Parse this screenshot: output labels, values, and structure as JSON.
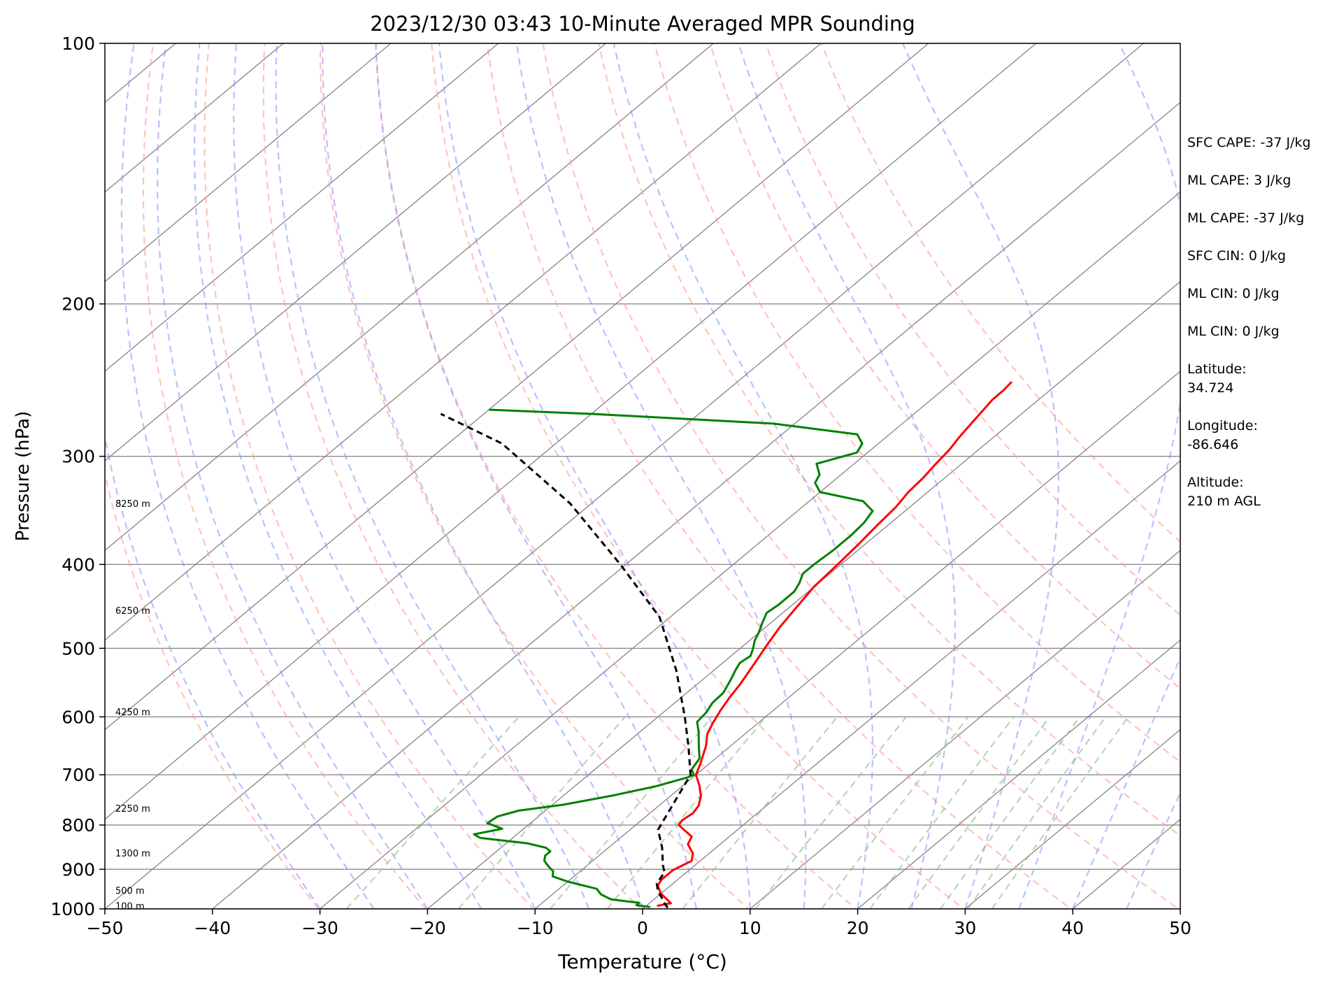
{
  "chart_data": {
    "type": "line",
    "title": "2023/12/30 03:43 10-Minute Averaged MPR Sounding",
    "xlabel": "Temperature (°C)",
    "ylabel": "Pressure (hPa)",
    "xlim": [
      -50,
      50
    ],
    "ylim": [
      1000,
      100
    ],
    "y_scale": "log",
    "skew_t": true,
    "grid": true,
    "x_ticks": [
      -50,
      -40,
      -30,
      -20,
      -10,
      0,
      10,
      20,
      30,
      40,
      50
    ],
    "x_tick_labels": [
      "−50",
      "−40",
      "−30",
      "−20",
      "−10",
      "0",
      "10",
      "20",
      "30",
      "40",
      "50"
    ],
    "y_ticks": [
      100,
      200,
      300,
      400,
      500,
      600,
      700,
      800,
      900,
      1000
    ],
    "y_tick_labels": [
      "100",
      "200",
      "300",
      "400",
      "500",
      "600",
      "700",
      "800",
      "900",
      "1000"
    ],
    "series": [
      {
        "color": "#ff0000",
        "style": "solid",
        "points": [
          [
            1.0,
            992
          ],
          [
            2.0,
            985
          ],
          [
            0.0,
            960
          ],
          [
            -1.2,
            940
          ],
          [
            -1.5,
            925
          ],
          [
            -1.5,
            902
          ],
          [
            -0.8,
            880
          ],
          [
            -1.5,
            863
          ],
          [
            -3.0,
            842
          ],
          [
            -3.5,
            825
          ],
          [
            -5.0,
            810
          ],
          [
            -6.0,
            800
          ],
          [
            -6.2,
            790
          ],
          [
            -6.0,
            775
          ],
          [
            -6.3,
            760
          ],
          [
            -7.2,
            740
          ],
          [
            -8.5,
            720
          ],
          [
            -10.0,
            700
          ],
          [
            -10.8,
            680
          ],
          [
            -11.5,
            665
          ],
          [
            -12.3,
            648
          ],
          [
            -13.5,
            628
          ],
          [
            -14.2,
            610
          ],
          [
            -14.9,
            590
          ],
          [
            -15.5,
            570
          ],
          [
            -16.0,
            550
          ],
          [
            -17.0,
            520
          ],
          [
            -17.9,
            495
          ],
          [
            -18.7,
            472
          ],
          [
            -19.3,
            450
          ],
          [
            -20.0,
            425
          ],
          [
            -20.3,
            400
          ],
          [
            -20.6,
            380
          ],
          [
            -21.0,
            360
          ],
          [
            -21.3,
            343
          ],
          [
            -21.8,
            330
          ],
          [
            -22.0,
            318
          ],
          [
            -22.4,
            306
          ],
          [
            -22.7,
            295
          ],
          [
            -23.2,
            285
          ],
          [
            -23.6,
            275
          ],
          [
            -24.0,
            265
          ],
          [
            -24.3,
            258
          ],
          [
            -24.3,
            252
          ],
          [
            -24.5,
            246
          ]
        ]
      },
      {
        "color": "#008000",
        "style": "solid",
        "points": [
          [
            0.5,
            995
          ],
          [
            -1.0,
            990
          ],
          [
            -1.0,
            984
          ],
          [
            -4.0,
            975
          ],
          [
            -5.5,
            962
          ],
          [
            -6.5,
            948
          ],
          [
            -10.0,
            930
          ],
          [
            -12.0,
            917
          ],
          [
            -12.5,
            905
          ],
          [
            -13.5,
            893
          ],
          [
            -14.5,
            880
          ],
          [
            -15.0,
            868
          ],
          [
            -15.0,
            858
          ],
          [
            -15.8,
            850
          ],
          [
            -18.0,
            840
          ],
          [
            -23.0,
            828
          ],
          [
            -24.0,
            820
          ],
          [
            -22.0,
            808
          ],
          [
            -24.0,
            796
          ],
          [
            -23.8,
            782
          ],
          [
            -22.5,
            770
          ],
          [
            -19.0,
            758
          ],
          [
            -15.5,
            740
          ],
          [
            -12.5,
            722
          ],
          [
            -10.5,
            705
          ],
          [
            -10.2,
            700
          ],
          [
            -11.0,
            690
          ],
          [
            -11.5,
            670
          ],
          [
            -12.5,
            655
          ],
          [
            -13.5,
            640
          ],
          [
            -14.5,
            625
          ],
          [
            -15.8,
            608
          ],
          [
            -16.0,
            593
          ],
          [
            -16.5,
            578
          ],
          [
            -16.6,
            563
          ],
          [
            -17.4,
            543
          ],
          [
            -18.0,
            530
          ],
          [
            -18.4,
            520
          ],
          [
            -18.2,
            510
          ],
          [
            -18.8,
            500
          ],
          [
            -19.5,
            490
          ],
          [
            -20.0,
            480
          ],
          [
            -20.8,
            467
          ],
          [
            -21.5,
            455
          ],
          [
            -21.3,
            445
          ],
          [
            -21.3,
            430
          ],
          [
            -21.8,
            420
          ],
          [
            -22.5,
            410
          ],
          [
            -22.5,
            400
          ],
          [
            -22.3,
            385
          ],
          [
            -22.3,
            370
          ],
          [
            -22.5,
            358
          ],
          [
            -23.0,
            347
          ],
          [
            -25.0,
            338
          ],
          [
            -30.0,
            330
          ],
          [
            -31.5,
            322
          ],
          [
            -32.0,
            315
          ],
          [
            -33.5,
            306
          ],
          [
            -31.0,
            297
          ],
          [
            -31.5,
            290
          ],
          [
            -33.0,
            283
          ],
          [
            -42.0,
            275
          ],
          [
            -60.0,
            268
          ],
          [
            -70.0,
            265
          ]
        ]
      },
      {
        "color": "#000000",
        "style": "dashed",
        "points": [
          [
            2.2,
            997
          ],
          [
            1.4,
            985
          ],
          [
            0.5,
            970
          ],
          [
            -0.5,
            955
          ],
          [
            -1.5,
            935
          ],
          [
            -1.8,
            920
          ],
          [
            -2.0,
            908
          ],
          [
            -3.0,
            890
          ],
          [
            -5.0,
            850
          ],
          [
            -7.4,
            810
          ],
          [
            -10.5,
            700
          ],
          [
            -13.8,
            650
          ],
          [
            -17.5,
            600
          ],
          [
            -23.5,
            530
          ],
          [
            -31.0,
            460
          ],
          [
            -40.5,
            400
          ],
          [
            -52.0,
            340
          ],
          [
            -65.0,
            290
          ],
          [
            -74.0,
            268
          ]
        ]
      }
    ],
    "height_labels": [
      {
        "text": "8250 m",
        "pressure": 340
      },
      {
        "text": "6250 m",
        "pressure": 452
      },
      {
        "text": "4250 m",
        "pressure": 592
      },
      {
        "text": "2250 m",
        "pressure": 765
      },
      {
        "text": "1300 m",
        "pressure": 862
      },
      {
        "text": "500 m",
        "pressure": 952
      },
      {
        "text": "100 m",
        "pressure": 992
      }
    ],
    "annotations": [
      "SFC CAPE: -37 J/kg",
      "ML CAPE: 3 J/kg",
      "ML CAPE: -37 J/kg",
      "SFC CIN: 0 J/kg",
      "ML CIN: 0 J/kg",
      "ML CIN: 0 J/kg",
      "Latitude:",
      "34.724",
      "Longitude:",
      "-86.646",
      "Altitude:",
      "210 m AGL"
    ],
    "reference_lines": {
      "isotherms": {
        "color": "#808080",
        "style": "solid",
        "from": -150,
        "to": 50,
        "step": 10
      },
      "dry_adiabats": {
        "color": "#ff9999",
        "style": "dashed",
        "theta_k": [
          243,
          253,
          263,
          273,
          283,
          293,
          303,
          313,
          323,
          333,
          343,
          353,
          363,
          373
        ]
      },
      "moist_adiabats": {
        "color": "#8888ff",
        "style": "dashed",
        "surface_temps_c": [
          -30,
          -25,
          -20,
          -15,
          -10,
          -5,
          0,
          5,
          10,
          15,
          20,
          25,
          30,
          35,
          40,
          45
        ]
      },
      "mixing_ratio": {
        "color": "#88bb88",
        "style": "dashed",
        "top_pressure": 600,
        "g_per_kg": [
          0.4,
          1,
          2,
          3,
          5,
          8,
          12,
          16,
          20,
          24,
          28,
          32
        ]
      }
    }
  }
}
